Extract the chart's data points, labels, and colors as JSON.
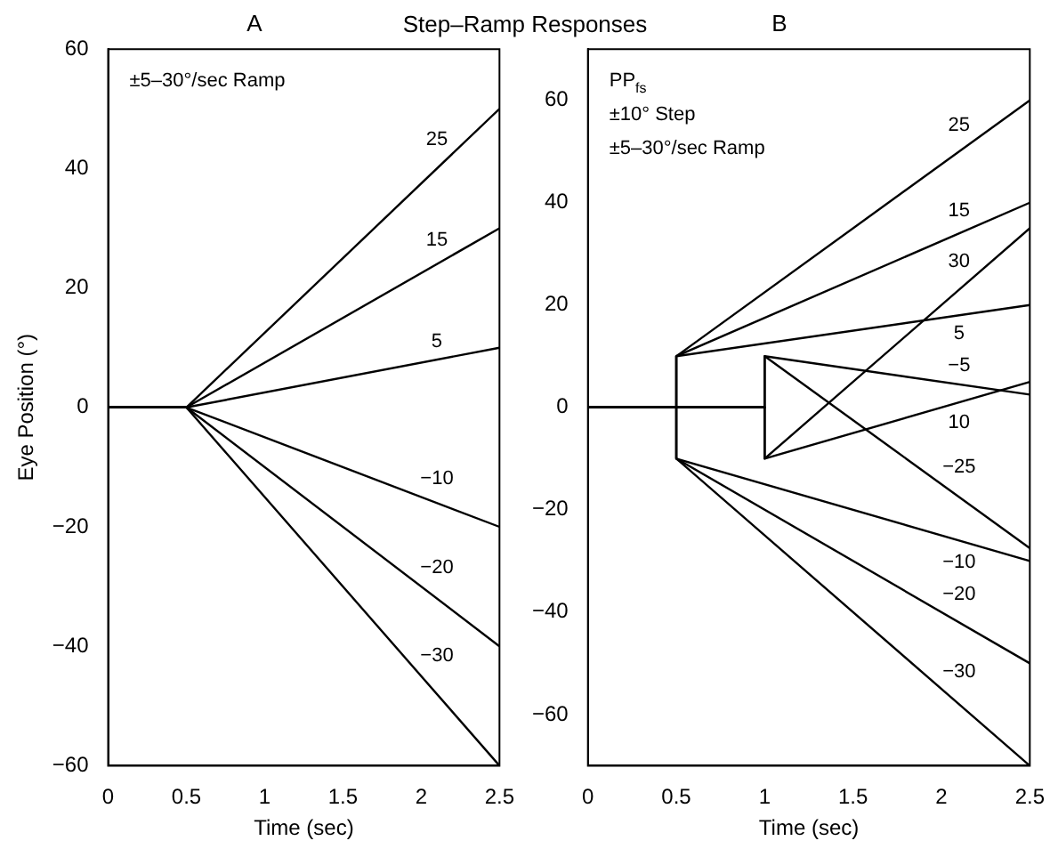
{
  "chart_data": [
    {
      "type": "line",
      "title": "A",
      "subtitle": "Step–Ramp Responses",
      "xlabel": "Time (sec)",
      "ylabel": "Eye Position (°)",
      "xlim": [
        0,
        2.5
      ],
      "xticks": [
        0,
        0.5,
        1,
        1.5,
        2,
        2.5
      ],
      "ylim": [
        -60,
        60
      ],
      "yticks": [
        -60,
        -40,
        -20,
        0,
        20,
        40,
        60
      ],
      "grid": false,
      "legend": false,
      "marker": "none",
      "line_style": "solid",
      "annotations": [
        "±5–30°/sec Ramp"
      ],
      "series": [
        {
          "name": "25",
          "color": "#000000",
          "x": [
            0,
            0.5,
            2.5
          ],
          "values": [
            0,
            0,
            50
          ]
        },
        {
          "name": "15",
          "color": "#000000",
          "x": [
            0,
            0.5,
            2.5
          ],
          "values": [
            0,
            0,
            30
          ]
        },
        {
          "name": "5",
          "color": "#000000",
          "x": [
            0,
            0.5,
            2.5
          ],
          "values": [
            0,
            0,
            10
          ]
        },
        {
          "name": "−10",
          "color": "#000000",
          "x": [
            0,
            0.5,
            2.5
          ],
          "values": [
            0,
            0,
            -20
          ]
        },
        {
          "name": "−20",
          "color": "#000000",
          "x": [
            0,
            0.5,
            2.5
          ],
          "values": [
            0,
            0,
            -40
          ]
        },
        {
          "name": "−30",
          "color": "#000000",
          "x": [
            0,
            0.5,
            2.5
          ],
          "values": [
            0,
            0,
            -60
          ]
        }
      ]
    },
    {
      "type": "line",
      "title": "B",
      "xlabel": "Time (sec)",
      "xlim": [
        0,
        2.5
      ],
      "xticks": [
        0,
        0.5,
        1,
        1.5,
        2,
        2.5
      ],
      "ylim": [
        -70,
        70
      ],
      "yticks": [
        -60,
        -40,
        -20,
        0,
        20,
        40,
        60
      ],
      "grid": false,
      "legend": false,
      "marker": "none",
      "line_style": "solid",
      "annotations": [
        "PP$_{fs}$",
        "±10° Step",
        "±5–30°/sec Ramp"
      ],
      "series": [
        {
          "name": "25",
          "color": "#000000",
          "x": [
            0,
            0.5,
            0.5,
            2.5
          ],
          "values": [
            0,
            0,
            10,
            60
          ]
        },
        {
          "name": "15",
          "color": "#000000",
          "x": [
            0,
            0.5,
            0.5,
            2.5
          ],
          "values": [
            0,
            0,
            10,
            40
          ]
        },
        {
          "name": "30",
          "color": "#000000",
          "x": [
            0,
            1,
            1,
            2.5
          ],
          "values": [
            0,
            0,
            -10,
            35
          ]
        },
        {
          "name": "5",
          "color": "#000000",
          "x": [
            0,
            0.5,
            0.5,
            2.5
          ],
          "values": [
            0,
            0,
            10,
            20
          ]
        },
        {
          "name": "−5",
          "color": "#000000",
          "x": [
            0,
            1,
            1,
            2.5
          ],
          "values": [
            0,
            0,
            10,
            2.5
          ]
        },
        {
          "name": "10",
          "color": "#000000",
          "x": [
            0,
            1,
            1,
            2.5
          ],
          "values": [
            0,
            0,
            -10,
            5
          ]
        },
        {
          "name": "−25",
          "color": "#000000",
          "x": [
            0,
            1,
            1,
            2.5
          ],
          "values": [
            0,
            0,
            10,
            -27.5
          ]
        },
        {
          "name": "−10",
          "color": "#000000",
          "x": [
            0,
            0.5,
            0.5,
            2.5
          ],
          "values": [
            0,
            0,
            -10,
            -30
          ]
        },
        {
          "name": "−20",
          "color": "#000000",
          "x": [
            0,
            0.5,
            0.5,
            2.5
          ],
          "values": [
            0,
            0,
            -10,
            -50
          ]
        },
        {
          "name": "−30",
          "color": "#000000",
          "x": [
            0,
            0.5,
            0.5,
            2.5
          ],
          "values": [
            0,
            0,
            -10,
            -70
          ]
        }
      ]
    }
  ]
}
